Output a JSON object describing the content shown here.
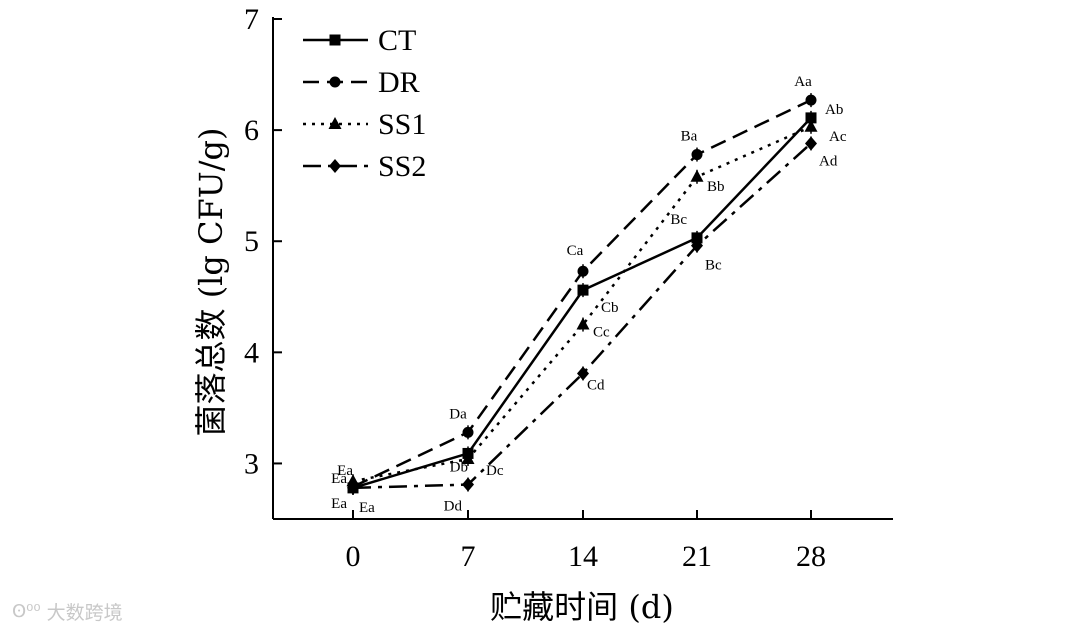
{
  "chart_data": {
    "type": "line",
    "title": "",
    "xlabel": "贮藏时间 (d)",
    "ylabel": "菌落总数 (lg CFU/g)",
    "x": [
      0,
      7,
      14,
      21,
      28
    ],
    "x_tick_labels": [
      "0",
      "7",
      "14",
      "21",
      "28"
    ],
    "ylim": [
      2.5,
      7
    ],
    "y_ticks": [
      3,
      4,
      5,
      6,
      7
    ],
    "y_tick_labels": [
      "3",
      "4",
      "5",
      "6",
      "7"
    ],
    "legend_position": "top-left",
    "series": [
      {
        "name": "CT",
        "marker": "square",
        "dash": "solid",
        "values": [
          2.78,
          3.09,
          4.56,
          5.03,
          6.11
        ],
        "labels": [
          "Ea",
          "Db",
          "Cb",
          "Bc",
          "Ab"
        ]
      },
      {
        "name": "DR",
        "marker": "circle",
        "dash": "dashed",
        "values": [
          2.79,
          3.28,
          4.73,
          5.78,
          6.27
        ],
        "labels": [
          "Ea",
          "Da",
          "Ca",
          "Ba",
          "Aa"
        ]
      },
      {
        "name": "SS1",
        "marker": "triangle",
        "dash": "dotted",
        "values": [
          2.84,
          3.04,
          4.25,
          5.58,
          6.03
        ],
        "labels": [
          "Ea",
          "Dc",
          "Cc",
          "Bb",
          "Ac"
        ]
      },
      {
        "name": "SS2",
        "marker": "diamond",
        "dash": "dashdot",
        "values": [
          2.78,
          2.81,
          3.81,
          4.96,
          5.88
        ],
        "labels": [
          "Ea",
          "Dd",
          "Cd",
          "Bc",
          "Ad"
        ]
      }
    ]
  },
  "watermark": {
    "text": "大数跨境",
    "icon": "brand-logo-icon"
  }
}
